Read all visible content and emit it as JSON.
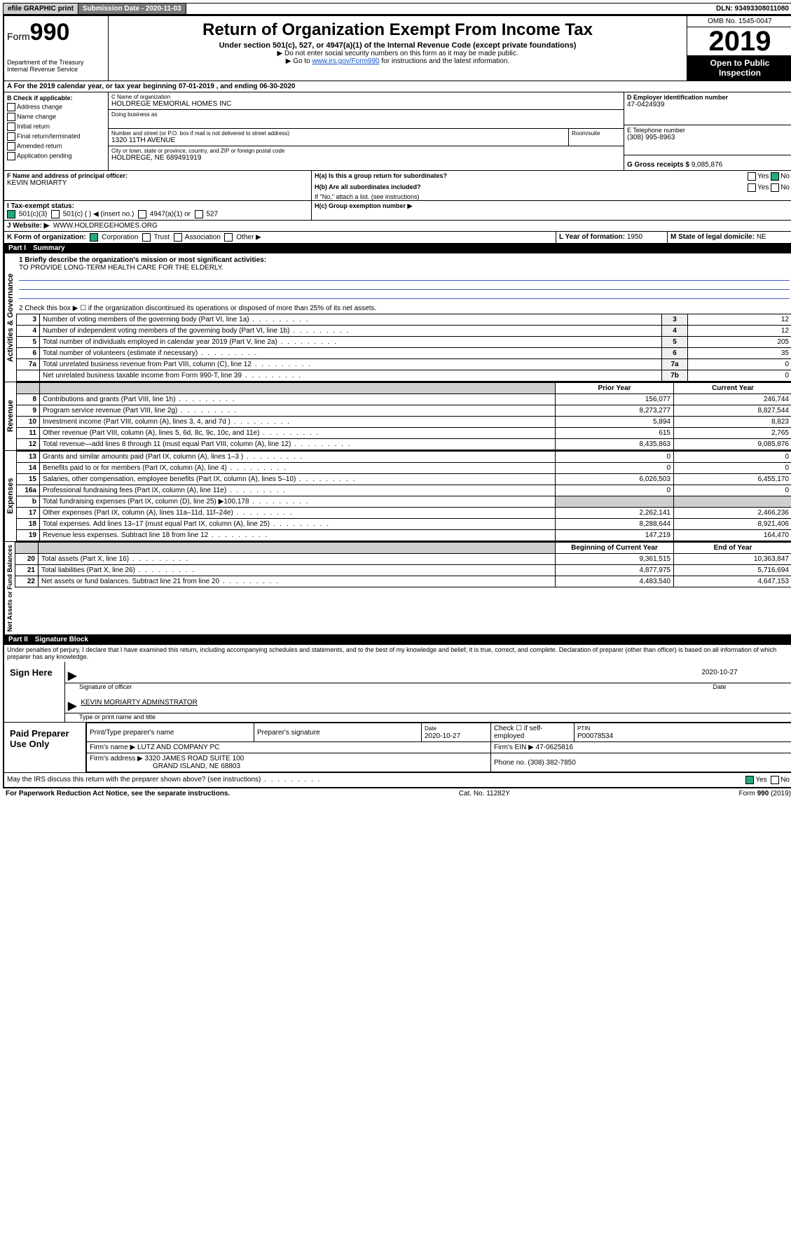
{
  "topbar": {
    "efile": "efile GRAPHIC print",
    "submission": "Submission Date - 2020-11-03",
    "dln": "DLN: 93493308011080"
  },
  "header": {
    "form_label": "Form",
    "form_num": "990",
    "dept": "Department of the Treasury",
    "irs": "Internal Revenue Service",
    "title": "Return of Organization Exempt From Income Tax",
    "sub": "Under section 501(c), 527, or 4947(a)(1) of the Internal Revenue Code (except private foundations)",
    "note1": "▶ Do not enter social security numbers on this form as it may be made public.",
    "note2_pre": "▶ Go to ",
    "note2_link": "www.irs.gov/Form990",
    "note2_post": " for instructions and the latest information.",
    "omb": "OMB No. 1545-0047",
    "year": "2019",
    "open": "Open to Public Inspection"
  },
  "period": "A For the 2019 calendar year, or tax year beginning 07-01-2019    , and ending 06-30-2020",
  "boxB": {
    "title": "B Check if applicable:",
    "items": [
      "Address change",
      "Name change",
      "Initial return",
      "Final return/terminated",
      "Amended return",
      "Application pending"
    ]
  },
  "boxC": {
    "label_name": "C Name of organization",
    "org": "HOLDREGE MEMORIAL HOMES INC",
    "dba_label": "Doing business as",
    "addr_label": "Number and street (or P.O. box if mail is not delivered to street address)",
    "room_label": "Room/suite",
    "addr": "1320 11TH AVENUE",
    "city_label": "City or town, state or province, country, and ZIP or foreign postal code",
    "city": "HOLDREGE, NE  689491919"
  },
  "boxD": {
    "label": "D Employer identification number",
    "value": "47-0424939"
  },
  "boxE": {
    "label": "E Telephone number",
    "value": "(308) 995-8963"
  },
  "boxG": {
    "label": "G Gross receipts $",
    "value": "9,085,876"
  },
  "boxF": {
    "label": "F  Name and address of principal officer:",
    "value": "KEVIN MORIARTY"
  },
  "boxH": {
    "a_label": "H(a)  Is this a group return for subordinates?",
    "b_label": "H(b)  Are all subordinates included?",
    "b_note": "If \"No,\" attach a list. (see instructions)",
    "c_label": "H(c)  Group exemption number ▶",
    "yes": "Yes",
    "no": "No"
  },
  "rowI": {
    "label": "I    Tax-exempt status:",
    "opts": [
      "501(c)(3)",
      "501(c) (   ) ◀ (insert no.)",
      "4947(a)(1) or",
      "527"
    ]
  },
  "rowJ": {
    "label": "J   Website: ▶",
    "value": "WWW.HOLDREGEHOMES.ORG"
  },
  "rowK": {
    "label": "K Form of organization:",
    "opts": [
      "Corporation",
      "Trust",
      "Association",
      "Other ▶"
    ]
  },
  "rowL": {
    "label": "L Year of formation:",
    "value": "1950"
  },
  "rowM": {
    "label": "M State of legal domicile:",
    "value": "NE"
  },
  "part1": {
    "num": "Part I",
    "title": "Summary"
  },
  "governance": {
    "label": "Activities & Governance",
    "l1": "1  Briefly describe the organization's mission or most significant activities:",
    "l1v": "TO PROVIDE LONG-TERM HEALTH CARE FOR THE ELDERLY.",
    "l2": "2   Check this box ▶ ☐  if the organization discontinued its operations or disposed of more than 25% of its net assets.",
    "rows": [
      {
        "n": "3",
        "t": "Number of voting members of the governing body (Part VI, line 1a)",
        "b": "3",
        "v": "12"
      },
      {
        "n": "4",
        "t": "Number of independent voting members of the governing body (Part VI, line 1b)",
        "b": "4",
        "v": "12"
      },
      {
        "n": "5",
        "t": "Total number of individuals employed in calendar year 2019 (Part V, line 2a)",
        "b": "5",
        "v": "205"
      },
      {
        "n": "6",
        "t": "Total number of volunteers (estimate if necessary)",
        "b": "6",
        "v": "35"
      },
      {
        "n": "7a",
        "t": "Total unrelated business revenue from Part VIII, column (C), line 12",
        "b": "7a",
        "v": "0"
      },
      {
        "n": "",
        "t": "Net unrelated business taxable income from Form 990-T, line 39",
        "b": "7b",
        "v": "0"
      }
    ]
  },
  "revenue": {
    "label": "Revenue",
    "head_prior": "Prior Year",
    "head_curr": "Current Year",
    "rows": [
      {
        "n": "8",
        "t": "Contributions and grants (Part VIII, line 1h)",
        "p": "156,077",
        "c": "246,744"
      },
      {
        "n": "9",
        "t": "Program service revenue (Part VIII, line 2g)",
        "p": "8,273,277",
        "c": "8,827,544"
      },
      {
        "n": "10",
        "t": "Investment income (Part VIII, column (A), lines 3, 4, and 7d )",
        "p": "5,894",
        "c": "8,823"
      },
      {
        "n": "11",
        "t": "Other revenue (Part VIII, column (A), lines 5, 6d, 8c, 9c, 10c, and 11e)",
        "p": "615",
        "c": "2,765"
      },
      {
        "n": "12",
        "t": "Total revenue—add lines 8 through 11 (must equal Part VIII, column (A), line 12)",
        "p": "8,435,863",
        "c": "9,085,876"
      }
    ]
  },
  "expenses": {
    "label": "Expenses",
    "rows": [
      {
        "n": "13",
        "t": "Grants and similar amounts paid (Part IX, column (A), lines 1–3 )",
        "p": "0",
        "c": "0"
      },
      {
        "n": "14",
        "t": "Benefits paid to or for members (Part IX, column (A), line 4)",
        "p": "0",
        "c": "0"
      },
      {
        "n": "15",
        "t": "Salaries, other compensation, employee benefits (Part IX, column (A), lines 5–10)",
        "p": "6,026,503",
        "c": "6,455,170"
      },
      {
        "n": "16a",
        "t": "Professional fundraising fees (Part IX, column (A), line 11e)",
        "p": "0",
        "c": "0"
      },
      {
        "n": "b",
        "t": "Total fundraising expenses (Part IX, column (D), line 25) ▶100,178",
        "p": "",
        "c": "",
        "shade": true
      },
      {
        "n": "17",
        "t": "Other expenses (Part IX, column (A), lines 11a–11d, 11f–24e)",
        "p": "2,262,141",
        "c": "2,466,236"
      },
      {
        "n": "18",
        "t": "Total expenses. Add lines 13–17 (must equal Part IX, column (A), line 25)",
        "p": "8,288,644",
        "c": "8,921,406"
      },
      {
        "n": "19",
        "t": "Revenue less expenses. Subtract line 18 from line 12",
        "p": "147,219",
        "c": "164,470"
      }
    ]
  },
  "netassets": {
    "label": "Net Assets or Fund Balances",
    "head_prior": "Beginning of Current Year",
    "head_curr": "End of Year",
    "rows": [
      {
        "n": "20",
        "t": "Total assets (Part X, line 16)",
        "p": "9,361,515",
        "c": "10,363,847"
      },
      {
        "n": "21",
        "t": "Total liabilities (Part X, line 26)",
        "p": "4,877,975",
        "c": "5,716,694"
      },
      {
        "n": "22",
        "t": "Net assets or fund balances. Subtract line 21 from line 20",
        "p": "4,483,540",
        "c": "4,647,153"
      }
    ]
  },
  "part2": {
    "num": "Part II",
    "title": "Signature Block"
  },
  "sig": {
    "perjury": "Under penalties of perjury, I declare that I have examined this return, including accompanying schedules and statements, and to the best of my knowledge and belief, it is true, correct, and complete. Declaration of preparer (other than officer) is based on all information of which preparer has any knowledge.",
    "sign_here": "Sign Here",
    "sig_officer": "Signature of officer",
    "date": "2020-10-27",
    "date_lbl": "Date",
    "name": "KEVIN MORIARTY  ADMINSTRATOR",
    "name_lbl": "Type or print name and title",
    "paid": "Paid Preparer Use Only",
    "prep_name_lbl": "Print/Type preparer's name",
    "prep_sig_lbl": "Preparer's signature",
    "prep_date_lbl": "Date",
    "prep_date": "2020-10-27",
    "check_self": "Check ☐ if self-employed",
    "ptin_lbl": "PTIN",
    "ptin": "P00078534",
    "firm_name_lbl": "Firm's name   ▶",
    "firm_name": "LUTZ AND COMPANY PC",
    "firm_ein_lbl": "Firm's EIN ▶",
    "firm_ein": "47-0625816",
    "firm_addr_lbl": "Firm's address ▶",
    "firm_addr1": "3320 JAMES ROAD SUITE 100",
    "firm_addr2": "GRAND ISLAND, NE  68803",
    "phone_lbl": "Phone no.",
    "phone": "(308) 382-7850",
    "discuss": "May the IRS discuss this return with the preparer shown above? (see instructions)",
    "yes": "Yes",
    "no": "No"
  },
  "footer": {
    "pra": "For Paperwork Reduction Act Notice, see the separate instructions.",
    "cat": "Cat. No. 11282Y",
    "form": "Form 990 (2019)"
  }
}
